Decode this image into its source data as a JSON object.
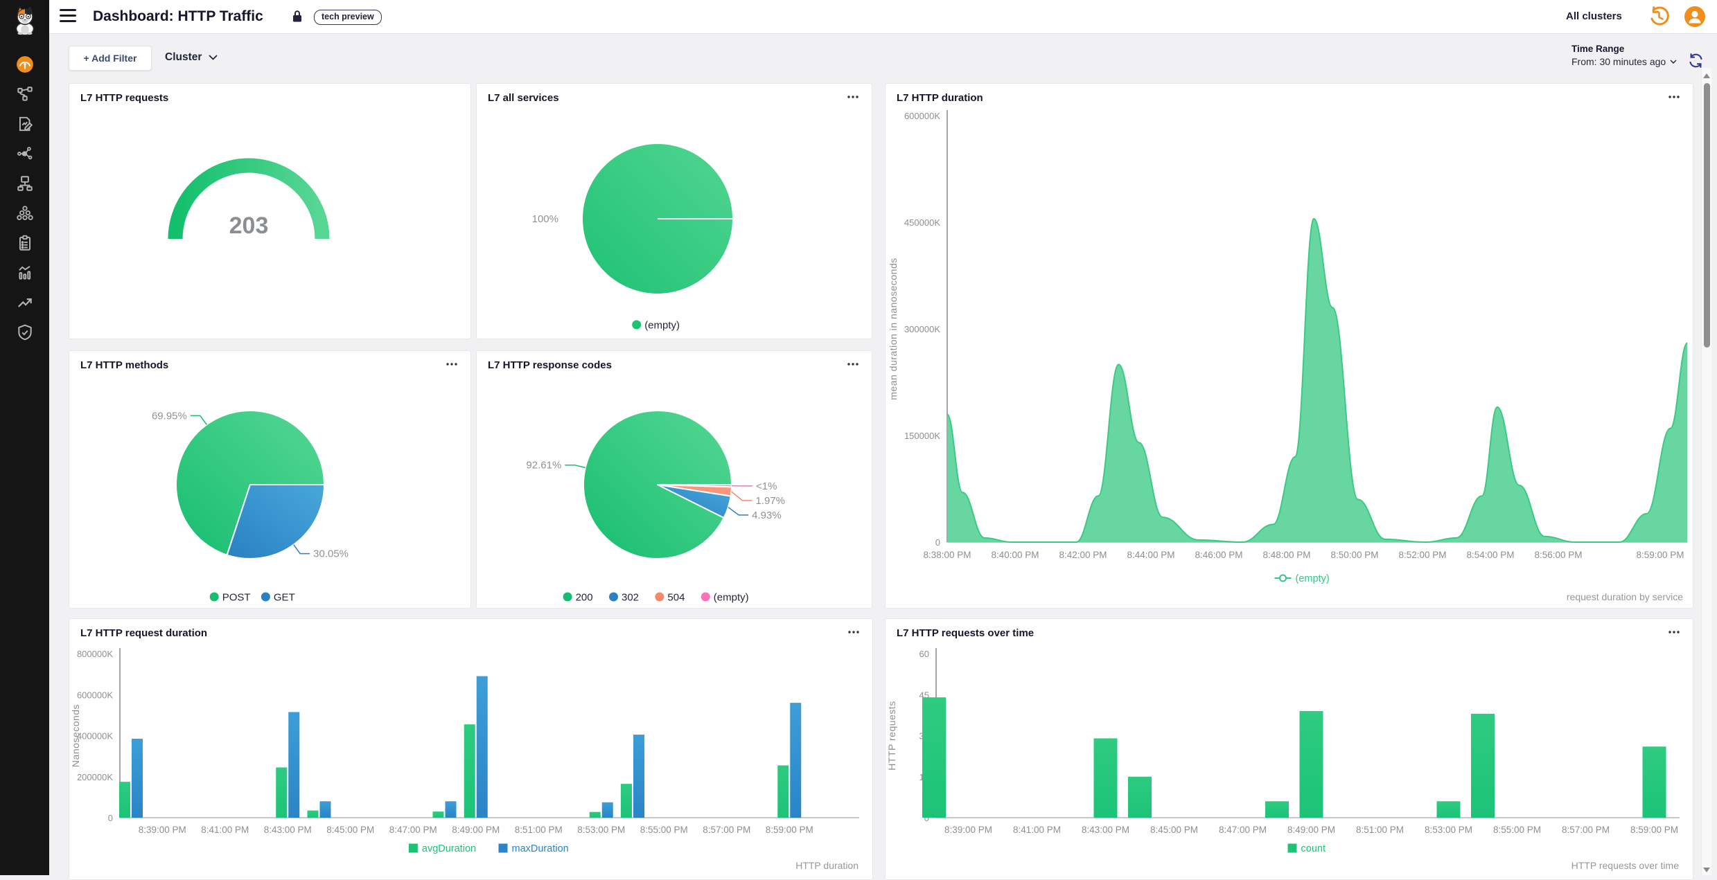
{
  "header": {
    "title": "Dashboard: HTTP Traffic",
    "badge": "tech preview",
    "cluster_selector": "All clusters"
  },
  "filter_bar": {
    "add_filter": "+ Add Filter",
    "cluster_dropdown": "Cluster",
    "time_range_label": "Time Range",
    "time_range_value": "From: 30 minutes ago"
  },
  "icons": {
    "header": [
      "hamburger-icon",
      "lock-icon",
      "history-clock-icon",
      "user-avatar-icon"
    ],
    "filter_bar": [
      "chevron-down-icon",
      "refresh-icon"
    ],
    "panel": [
      "ellipsis-menu-icon"
    ],
    "scrollbar": [
      "scroll-up-arrow",
      "scroll-down-arrow"
    ],
    "sidebar": [
      "cat-logo",
      "speedometer-icon",
      "flow-topology-icon",
      "document-edit-icon",
      "share-nodes-icon",
      "sitemap-icon",
      "circles-cluster-icon",
      "clipboard-icon",
      "metrics-bars-icon",
      "trend-up-icon",
      "shield-check-icon"
    ]
  },
  "colors": {
    "accent_orange": "#ef8e1c",
    "green": "#1cc376",
    "blue": "#2a84c6",
    "salmon": "#f9876d",
    "pink": "#f973b8",
    "sidebar_bg": "#151515",
    "page_bg": "#f1f1f3"
  },
  "chart_data": [
    {
      "panel": "l7-http-requests",
      "type": "gauge",
      "title": "L7 HTTP requests",
      "value": "203",
      "colors": {
        "start": "#13bf6c",
        "end": "#58d794",
        "value_text": "#8b8f93"
      }
    },
    {
      "panel": "l7-all-services",
      "type": "pie",
      "title": "L7 all services",
      "slices": [
        {
          "label": "(empty)",
          "value_pct": 100,
          "pct_label": "100%",
          "start_pct": 0,
          "color": "#1ec274",
          "color2": "#52d590",
          "leader": false
        }
      ]
    },
    {
      "panel": "l7-http-duration",
      "type": "area",
      "title": "L7 HTTP duration",
      "ylabel": "mean duration in nanoseconds",
      "ymax": 600000,
      "yticks": [
        {
          "v": 0,
          "label": "0"
        },
        {
          "v": 150000,
          "label": "150000K"
        },
        {
          "v": 300000,
          "label": "300000K"
        },
        {
          "v": 450000,
          "label": "450000K"
        },
        {
          "v": 600000,
          "label": "600000K"
        }
      ],
      "xticks": [
        {
          "t": 0,
          "label": "8:38:00 PM"
        },
        {
          "t": 2,
          "label": "8:40:00 PM"
        },
        {
          "t": 4,
          "label": "8:42:00 PM"
        },
        {
          "t": 6,
          "label": "8:44:00 PM"
        },
        {
          "t": 8,
          "label": "8:46:00 PM"
        },
        {
          "t": 10,
          "label": "8:48:00 PM"
        },
        {
          "t": 12,
          "label": "8:50:00 PM"
        },
        {
          "t": 14,
          "label": "8:52:00 PM"
        },
        {
          "t": 16,
          "label": "8:54:00 PM"
        },
        {
          "t": 18,
          "label": "8:56:00 PM"
        },
        {
          "t": 21,
          "label": "8:59:00 PM"
        }
      ],
      "series": [
        {
          "name": "(empty)",
          "stroke": "#3bca84",
          "fill": "#5fd49b",
          "points": [
            [
              0,
              180000
            ],
            [
              0.45,
              70000
            ],
            [
              1.1,
              6000
            ],
            [
              1.9,
              0
            ],
            [
              3.8,
              0
            ],
            [
              4.45,
              65000
            ],
            [
              5.05,
              250000
            ],
            [
              5.65,
              140000
            ],
            [
              6.35,
              35000
            ],
            [
              7.4,
              3000
            ],
            [
              8.7,
              0
            ],
            [
              9.6,
              25000
            ],
            [
              10.25,
              120000
            ],
            [
              10.8,
              455000
            ],
            [
              11.35,
              330000
            ],
            [
              12.1,
              60000
            ],
            [
              12.9,
              4000
            ],
            [
              14.1,
              0
            ],
            [
              15,
              6000
            ],
            [
              15.75,
              65000
            ],
            [
              16.2,
              190000
            ],
            [
              16.85,
              80000
            ],
            [
              17.6,
              8000
            ],
            [
              18.5,
              0
            ],
            [
              19.8,
              0
            ],
            [
              20.6,
              40000
            ],
            [
              21.3,
              160000
            ],
            [
              21.8,
              280000
            ]
          ]
        }
      ],
      "legend": [
        {
          "label": "(empty)",
          "color": "#2fc982"
        }
      ],
      "footer": "request duration by service"
    },
    {
      "panel": "l7-http-methods",
      "type": "pie",
      "title": "L7 HTTP methods",
      "slices": [
        {
          "label": "POST",
          "value_pct": 69.95,
          "pct_label": "69.95%",
          "start_pct": 30.05,
          "color": "#17bd70",
          "color2": "#55d794"
        },
        {
          "label": "GET",
          "value_pct": 30.05,
          "pct_label": "30.05%",
          "start_pct": 0,
          "color": "#2a80c2",
          "color2": "#47a7db"
        }
      ]
    },
    {
      "panel": "l7-http-response-codes",
      "type": "pie",
      "title": "L7 HTTP response codes",
      "slices": [
        {
          "label": "200",
          "value_pct": 92.61,
          "pct_label": "92.61%",
          "start_pct": 7.39,
          "color": "#17bd70",
          "color2": "#55d794"
        },
        {
          "label": "302",
          "value_pct": 4.93,
          "pct_label": "4.93%",
          "start_pct": 2.46,
          "color": "#2a80c2",
          "color2": "#47a7db"
        },
        {
          "label": "504",
          "value_pct": 1.97,
          "pct_label": "1.97%",
          "start_pct": 0.49,
          "color": "#f9876d",
          "color2": "#fa9d85"
        },
        {
          "label": "(empty)",
          "value_pct": 0.49,
          "pct_label": "<1%",
          "start_pct": 0,
          "color": "#f973b8",
          "color2": "#fa8ac4"
        }
      ]
    },
    {
      "panel": "l7-http-request-duration",
      "type": "bar",
      "title": "L7 HTTP request duration",
      "ylabel": "Nanoseconds",
      "ymax": 800000,
      "yticks": [
        {
          "v": 0,
          "label": "0"
        },
        {
          "v": 200000,
          "label": "200000K"
        },
        {
          "v": 400000,
          "label": "400000K"
        },
        {
          "v": 600000,
          "label": "600000K"
        },
        {
          "v": 800000,
          "label": "800000K"
        }
      ],
      "xticks": [
        {
          "t": 1,
          "label": "8:39:00 PM"
        },
        {
          "t": 3,
          "label": "8:41:00 PM"
        },
        {
          "t": 5,
          "label": "8:43:00 PM"
        },
        {
          "t": 7,
          "label": "8:45:00 PM"
        },
        {
          "t": 9,
          "label": "8:47:00 PM"
        },
        {
          "t": 11,
          "label": "8:49:00 PM"
        },
        {
          "t": 13,
          "label": "8:51:00 PM"
        },
        {
          "t": 15,
          "label": "8:53:00 PM"
        },
        {
          "t": 17,
          "label": "8:55:00 PM"
        },
        {
          "t": 19,
          "label": "8:57:00 PM"
        },
        {
          "t": 21,
          "label": "8:59:00 PM"
        }
      ],
      "groups_t": [
        0,
        5,
        6,
        10,
        11,
        15,
        16,
        21
      ],
      "series": [
        {
          "name": "avgDuration",
          "color": "#1cc376",
          "color2": "#2ecb81",
          "values": [
            175000,
            245000,
            35000,
            30000,
            455000,
            28000,
            165000,
            255000
          ]
        },
        {
          "name": "maxDuration",
          "color": "#2a84c6",
          "color2": "#3d9ed8",
          "values": [
            385000,
            515000,
            80000,
            80000,
            690000,
            75000,
            405000,
            560000
          ]
        }
      ],
      "footer": "HTTP duration"
    },
    {
      "panel": "l7-http-requests-over-time",
      "type": "bar",
      "title": "L7 HTTP requests over time",
      "ylabel": "HTTP requests",
      "ymax": 60,
      "yticks": [
        {
          "v": 0,
          "label": "0"
        },
        {
          "v": 15,
          "label": "15"
        },
        {
          "v": 30,
          "label": "30"
        },
        {
          "v": 45,
          "label": "45"
        },
        {
          "v": 60,
          "label": "60"
        }
      ],
      "xticks": [
        {
          "t": 1,
          "label": "8:39:00 PM"
        },
        {
          "t": 3,
          "label": "8:41:00 PM"
        },
        {
          "t": 5,
          "label": "8:43:00 PM"
        },
        {
          "t": 7,
          "label": "8:45:00 PM"
        },
        {
          "t": 9,
          "label": "8:47:00 PM"
        },
        {
          "t": 11,
          "label": "8:49:00 PM"
        },
        {
          "t": 13,
          "label": "8:51:00 PM"
        },
        {
          "t": 15,
          "label": "8:53:00 PM"
        },
        {
          "t": 17,
          "label": "8:55:00 PM"
        },
        {
          "t": 19,
          "label": "8:57:00 PM"
        },
        {
          "t": 21,
          "label": "8:59:00 PM"
        }
      ],
      "groups_t": [
        0,
        5,
        6,
        10,
        11,
        15,
        16,
        21
      ],
      "series": [
        {
          "name": "count",
          "color": "#1cc376",
          "color2": "#2ecb81",
          "values": [
            44,
            29,
            15,
            6,
            39,
            6,
            38,
            26
          ]
        }
      ],
      "footer": "HTTP requests over time"
    }
  ]
}
